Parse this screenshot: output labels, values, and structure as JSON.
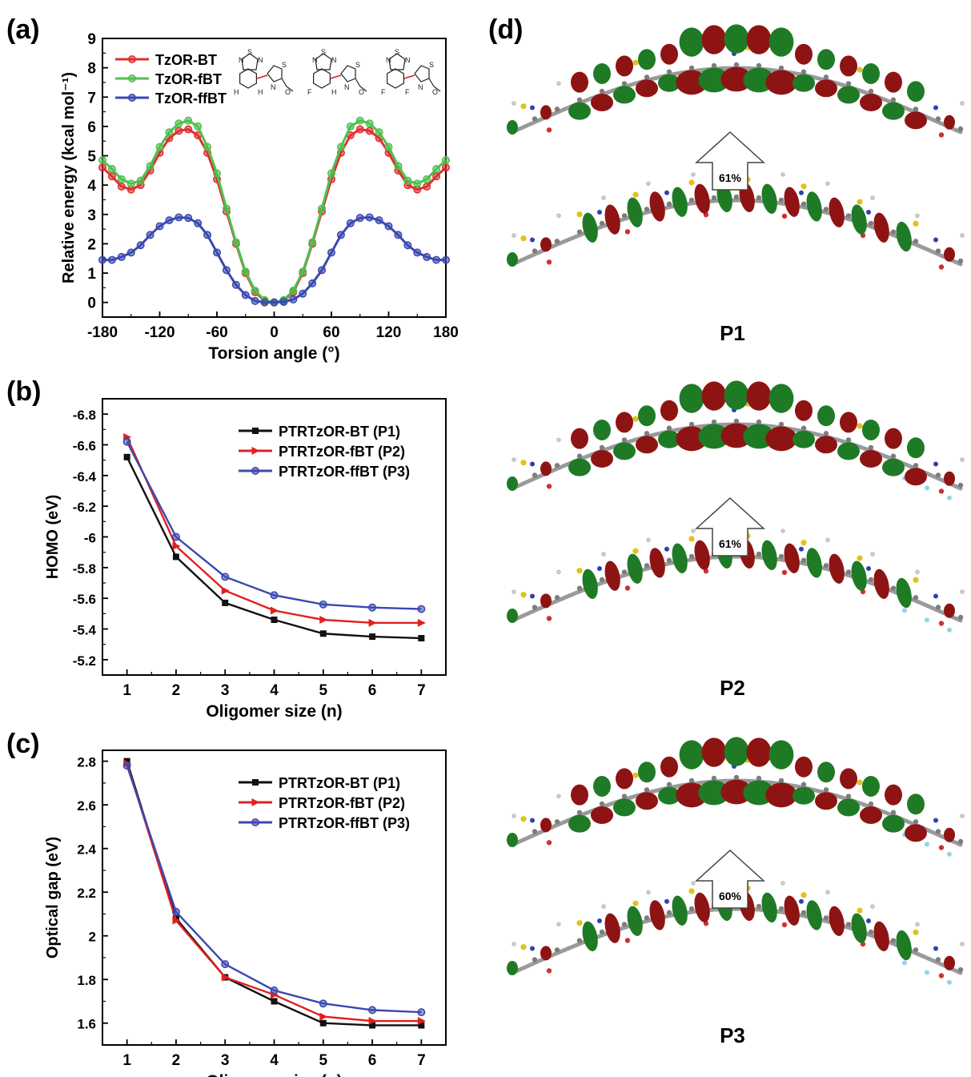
{
  "chart_data": [
    {
      "id": "a",
      "panel_label": "(a)",
      "type": "line",
      "xlabel": "Torsion angle (°)",
      "ylabel": "Relative energy (kcal mol⁻¹)",
      "xlim": [
        -180,
        180
      ],
      "ylim": [
        -0.5,
        9
      ],
      "xticks": [
        -180,
        -120,
        -60,
        0,
        60,
        120,
        180
      ],
      "yticks": [
        0,
        1,
        2,
        3,
        4,
        5,
        6,
        7,
        8,
        9
      ],
      "legend_position": "top-left",
      "x": [
        -180,
        -170,
        -160,
        -150,
        -140,
        -130,
        -120,
        -110,
        -100,
        -90,
        -80,
        -70,
        -60,
        -50,
        -40,
        -30,
        -20,
        -10,
        0,
        10,
        20,
        30,
        40,
        50,
        60,
        70,
        80,
        90,
        100,
        110,
        120,
        130,
        140,
        150,
        160,
        170,
        180
      ],
      "series": [
        {
          "name": "TzOR-BT",
          "color": "#e03030",
          "marker": "circle",
          "values": [
            4.6,
            4.3,
            3.95,
            3.85,
            4.0,
            4.5,
            5.1,
            5.6,
            5.85,
            5.9,
            5.7,
            5.1,
            4.2,
            3.1,
            2.0,
            1.0,
            0.35,
            0.05,
            0,
            0.05,
            0.35,
            1.0,
            2.0,
            3.1,
            4.2,
            5.1,
            5.7,
            5.9,
            5.85,
            5.6,
            5.1,
            4.5,
            4.0,
            3.85,
            3.95,
            4.3,
            4.6
          ]
        },
        {
          "name": "TzOR-fBT",
          "color": "#4fc04f",
          "marker": "circle",
          "values": [
            4.85,
            4.55,
            4.2,
            4.05,
            4.15,
            4.65,
            5.3,
            5.8,
            6.1,
            6.2,
            6.0,
            5.3,
            4.4,
            3.2,
            2.05,
            1.05,
            0.4,
            0.08,
            0,
            0.08,
            0.4,
            1.05,
            2.05,
            3.2,
            4.4,
            5.3,
            6.0,
            6.2,
            6.1,
            5.8,
            5.3,
            4.65,
            4.15,
            4.05,
            4.2,
            4.55,
            4.85
          ]
        },
        {
          "name": "TzOR-ffBT",
          "color": "#3a48b0",
          "marker": "circle",
          "values": [
            1.45,
            1.45,
            1.55,
            1.7,
            1.95,
            2.3,
            2.6,
            2.8,
            2.9,
            2.88,
            2.7,
            2.3,
            1.7,
            1.1,
            0.6,
            0.25,
            0.05,
            0,
            0,
            0.02,
            0.1,
            0.3,
            0.65,
            1.1,
            1.7,
            2.3,
            2.7,
            2.88,
            2.9,
            2.8,
            2.6,
            2.3,
            1.95,
            1.7,
            1.55,
            1.45,
            1.45
          ]
        }
      ],
      "structures": [
        {
          "substituents": [
            "H",
            "H"
          ]
        },
        {
          "substituents": [
            "F",
            "H"
          ]
        },
        {
          "substituents": [
            "F",
            "F"
          ]
        }
      ]
    },
    {
      "id": "b",
      "panel_label": "(b)",
      "type": "line",
      "xlabel": "Oligomer size (n)",
      "ylabel": "HOMO (eV)",
      "xlim": [
        0.5,
        7.5
      ],
      "ylim": [
        -6.9,
        -5.1
      ],
      "y_inverted": true,
      "xticks": [
        1,
        2,
        3,
        4,
        5,
        6,
        7
      ],
      "yticks": [
        -6.8,
        -6.6,
        -6.4,
        -6.2,
        -6.0,
        -5.8,
        -5.6,
        -5.4,
        -5.2
      ],
      "legend_position": "top-right",
      "x": [
        1,
        2,
        3,
        4,
        5,
        6,
        7
      ],
      "series": [
        {
          "name": "PTRTzOR-BT (P1)",
          "color": "#111111",
          "marker": "square",
          "values": [
            -6.52,
            -5.87,
            -5.57,
            -5.46,
            -5.37,
            -5.35,
            -5.34
          ]
        },
        {
          "name": "PTRTzOR-fBT (P2)",
          "color": "#e02020",
          "marker": "triangle-right",
          "values": [
            -6.65,
            -5.94,
            -5.65,
            -5.52,
            -5.46,
            -5.44,
            -5.44
          ]
        },
        {
          "name": "PTRTzOR-ffBT (P3)",
          "color": "#3a48b0",
          "marker": "circle",
          "values": [
            -6.62,
            -6.0,
            -5.74,
            -5.62,
            -5.56,
            -5.54,
            -5.53
          ]
        }
      ]
    },
    {
      "id": "c",
      "panel_label": "(c)",
      "type": "line",
      "xlabel": "Oligomer size (n)",
      "ylabel": "Optical gap (eV)",
      "xlim": [
        0.5,
        7.5
      ],
      "ylim": [
        1.5,
        2.85
      ],
      "xticks": [
        1,
        2,
        3,
        4,
        5,
        6,
        7
      ],
      "yticks": [
        1.6,
        1.8,
        2.0,
        2.2,
        2.4,
        2.6,
        2.8
      ],
      "legend_position": "top-right",
      "x": [
        1,
        2,
        3,
        4,
        5,
        6,
        7
      ],
      "series": [
        {
          "name": "PTRTzOR-BT (P1)",
          "color": "#111111",
          "marker": "square",
          "values": [
            2.8,
            2.08,
            1.81,
            1.7,
            1.6,
            1.59,
            1.59
          ]
        },
        {
          "name": "PTRTzOR-fBT (P2)",
          "color": "#e02020",
          "marker": "triangle-right",
          "values": [
            2.79,
            2.07,
            1.81,
            1.73,
            1.63,
            1.61,
            1.61
          ]
        },
        {
          "name": "PTRTzOR-ffBT (P3)",
          "color": "#3a48b0",
          "marker": "circle",
          "values": [
            2.78,
            2.11,
            1.87,
            1.75,
            1.69,
            1.66,
            1.65
          ]
        }
      ]
    }
  ],
  "panel_d": {
    "panel_label": "(d)",
    "orbital_colors": {
      "positive": "#8e1414",
      "negative": "#1f7a26"
    },
    "molecules": [
      {
        "name": "P1",
        "percent": "61%"
      },
      {
        "name": "P2",
        "percent": "61%"
      },
      {
        "name": "P3",
        "percent": "60%"
      }
    ]
  }
}
